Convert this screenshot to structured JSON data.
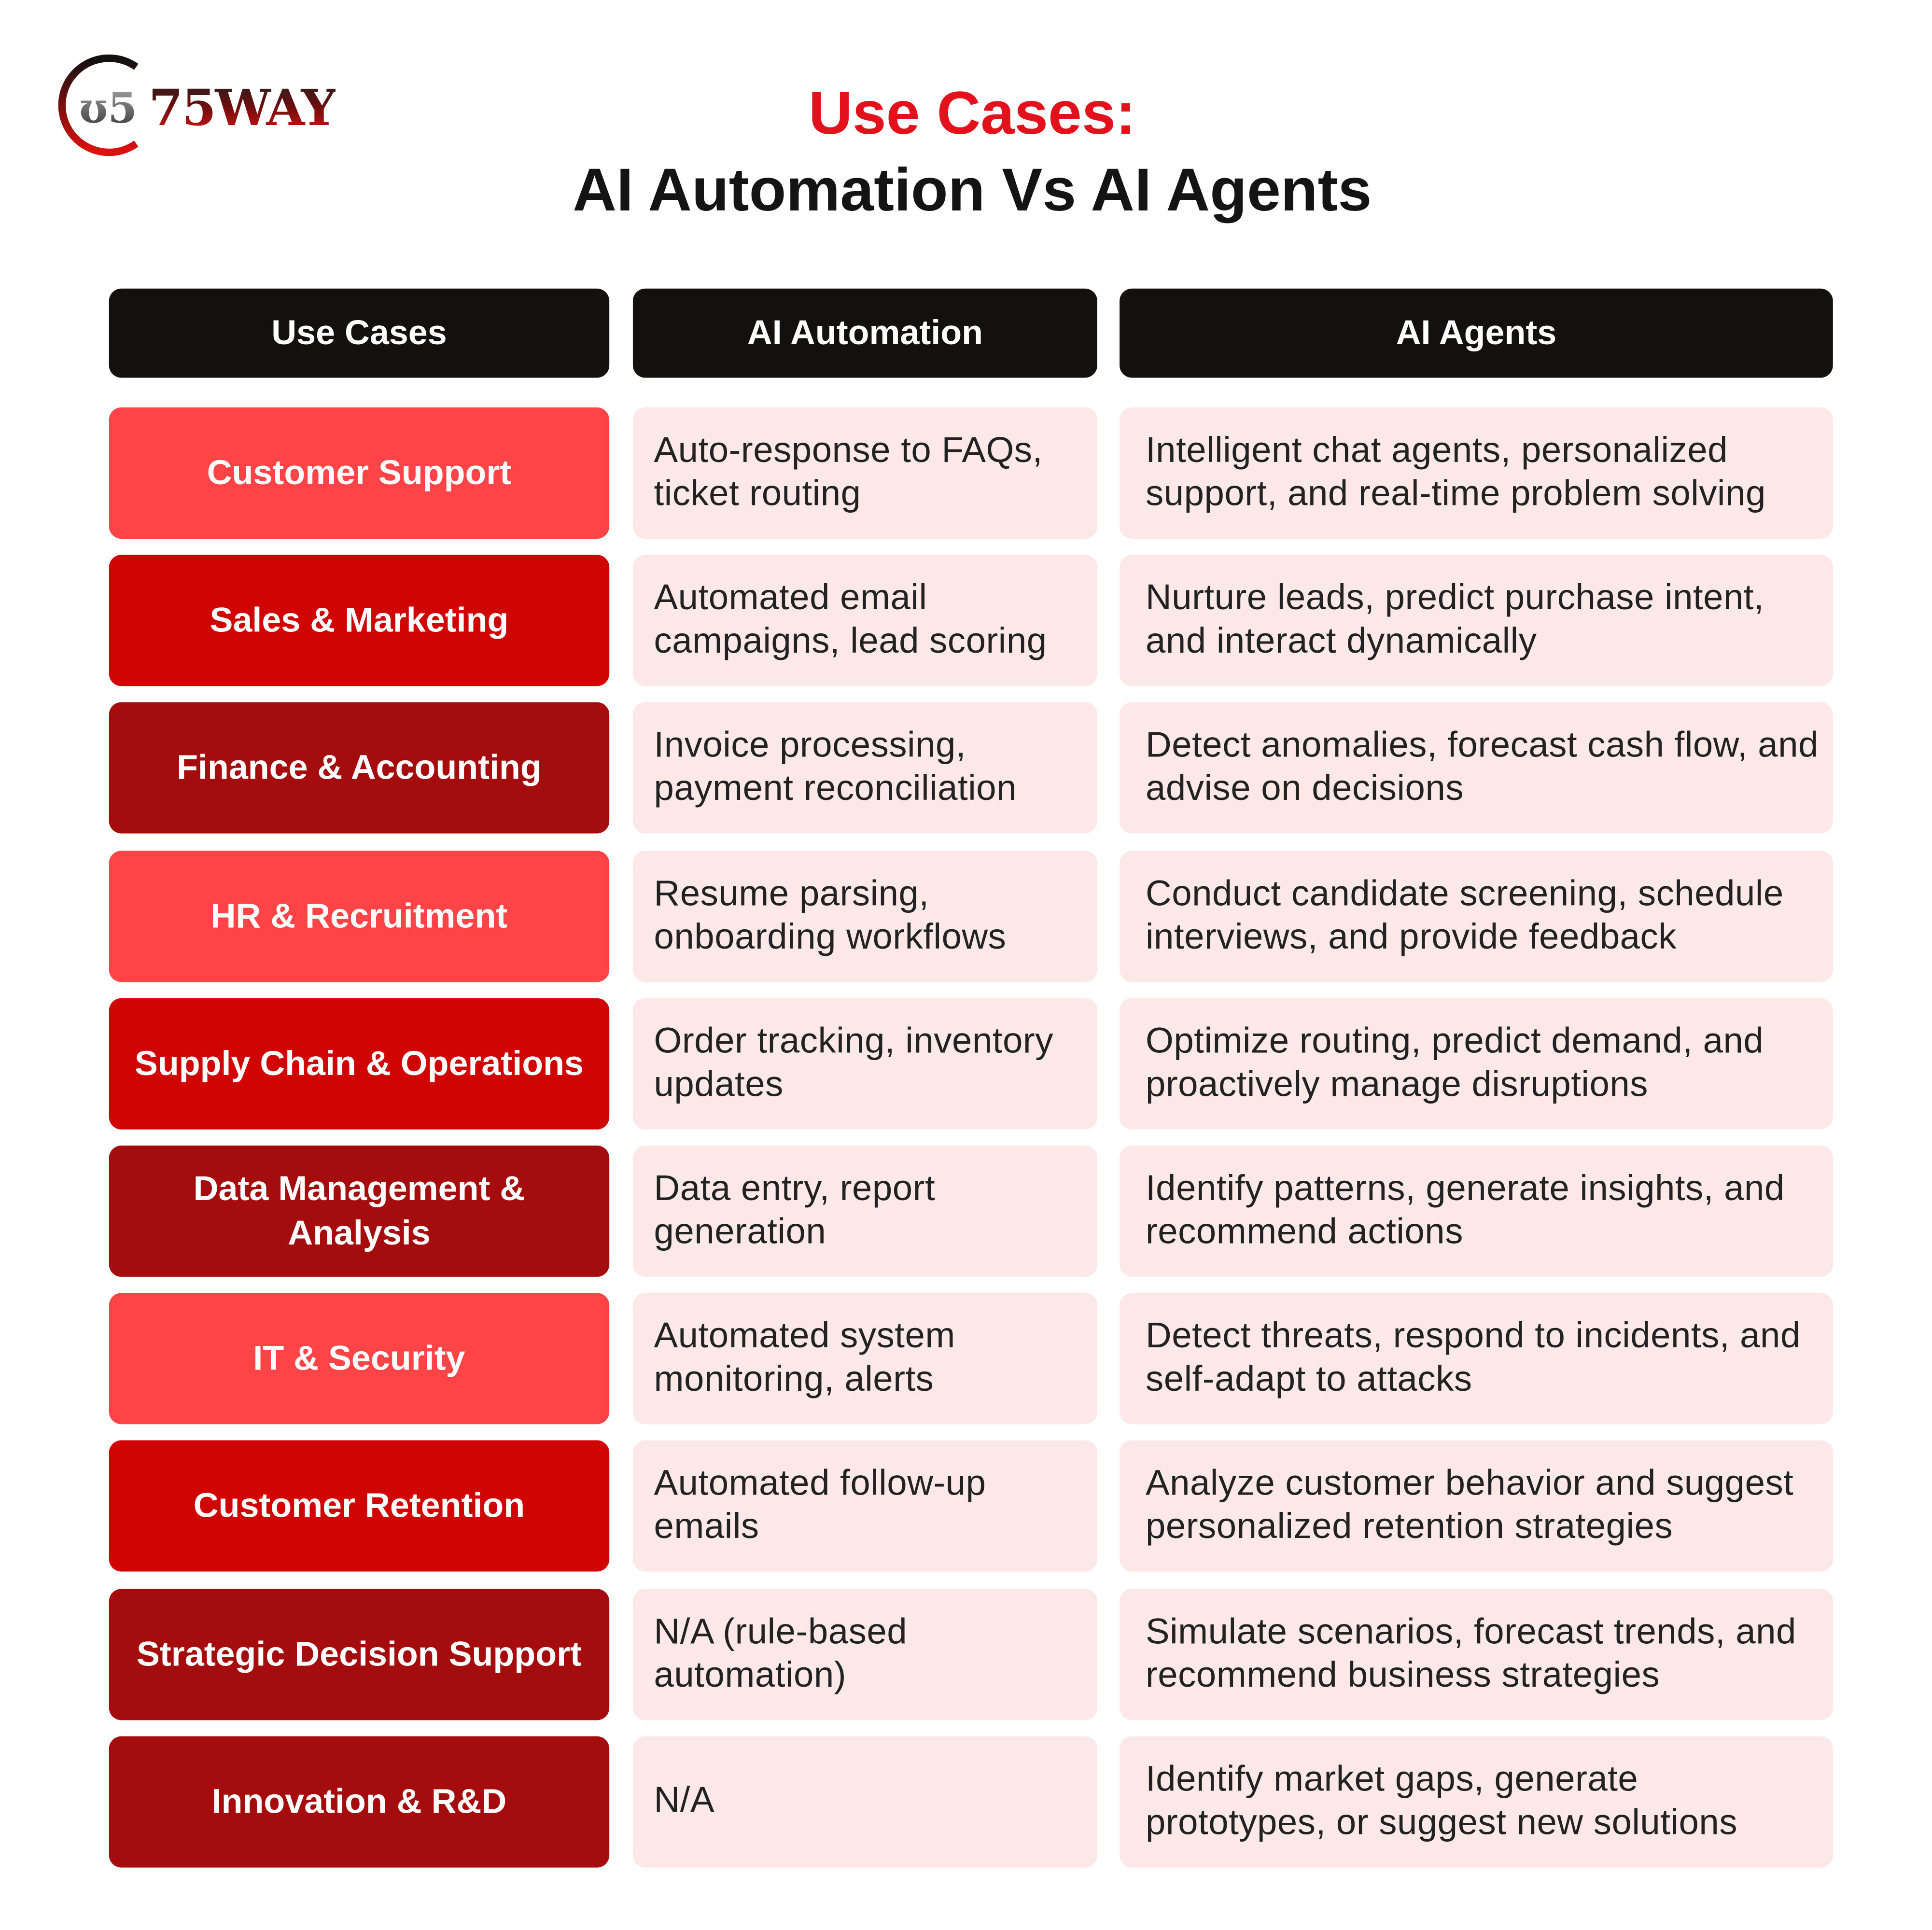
{
  "logo": {
    "text": "75WAY"
  },
  "title": {
    "line1": "Use Cases:",
    "line2": "AI Automation Vs AI Agents"
  },
  "colors": {
    "title_accent": "#e3111b",
    "header_bg": "#121110",
    "light_red": "#ff4447",
    "red": "#d10404",
    "dark_red": "#a50c0e",
    "cell_bg": "#fde8e8"
  },
  "table": {
    "headers": [
      "Use Cases",
      "AI Automation",
      "AI Agents"
    ],
    "rows": [
      {
        "use_case": "Customer Support",
        "tone": "light_red",
        "automation": "Auto-response to FAQs, ticket routing",
        "agents": "Intelligent chat agents, personalized support, and real-time problem solving"
      },
      {
        "use_case": "Sales & Marketing",
        "tone": "red",
        "automation": "Automated email campaigns, lead scoring",
        "agents": "Nurture leads, predict purchase intent, and interact dynamically"
      },
      {
        "use_case": "Finance & Accounting",
        "tone": "dark_red",
        "automation": "Invoice processing, payment reconciliation",
        "agents": "Detect anomalies, forecast cash flow, and advise on decisions"
      },
      {
        "use_case": "HR & Recruitment",
        "tone": "light_red",
        "automation": "Resume parsing, onboarding workflows",
        "agents": "Conduct candidate screening, schedule interviews, and provide feedback"
      },
      {
        "use_case": "Supply Chain & Operations",
        "tone": "red",
        "automation": "Order tracking, inventory updates",
        "agents": "Optimize routing, predict demand, and proactively manage disruptions"
      },
      {
        "use_case": "Data Management & Analysis",
        "tone": "dark_red",
        "automation": "Data entry, report generation",
        "agents": "Identify patterns, generate insights, and recommend actions"
      },
      {
        "use_case": "IT & Security",
        "tone": "light_red",
        "automation": "Automated system monitoring, alerts",
        "agents": "Detect threats, respond to incidents, and self-adapt to attacks"
      },
      {
        "use_case": "Customer Retention",
        "tone": "red",
        "automation": "Automated follow-up emails",
        "agents": "Analyze customer behavior and suggest personalized retention strategies"
      },
      {
        "use_case": "Strategic Decision Support",
        "tone": "dark_red",
        "automation": "N/A (rule-based automation)",
        "agents": "Simulate scenarios, forecast trends, and recommend business strategies"
      },
      {
        "use_case": "Innovation & R&D",
        "tone": "dark_red",
        "automation": "N/A",
        "agents": "Identify market gaps, generate prototypes, or suggest new solutions"
      }
    ]
  }
}
